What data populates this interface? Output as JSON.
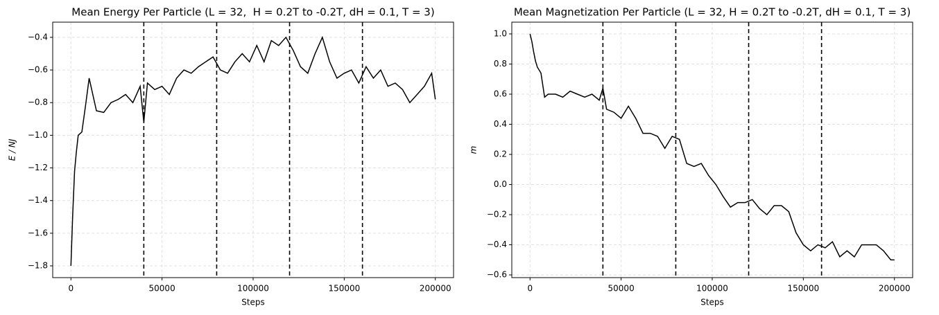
{
  "chart_data": [
    {
      "type": "line",
      "title": "Mean Energy Per Particle (L = 32,  H = 0.2T to -0.2T, dH = 0.1, T = 3)",
      "xlabel": "Steps",
      "ylabel": "E / NJ",
      "x": [
        0,
        1000,
        2000,
        3000,
        4000,
        6000,
        8000,
        10000,
        14000,
        18000,
        22000,
        26000,
        30000,
        34000,
        38000,
        40000,
        42000,
        46000,
        50000,
        54000,
        58000,
        62000,
        66000,
        70000,
        74000,
        78000,
        82000,
        86000,
        90000,
        94000,
        98000,
        102000,
        106000,
        110000,
        114000,
        118000,
        122000,
        126000,
        130000,
        134000,
        138000,
        142000,
        146000,
        150000,
        154000,
        158000,
        162000,
        166000,
        170000,
        174000,
        178000,
        182000,
        186000,
        190000,
        194000,
        198000,
        200000
      ],
      "series": [
        {
          "color": "#000000",
          "values": [
            -1.8,
            -1.48,
            -1.22,
            -1.1,
            -1.0,
            -0.98,
            -0.82,
            -0.65,
            -0.85,
            -0.86,
            -0.8,
            -0.78,
            -0.75,
            -0.8,
            -0.7,
            -0.92,
            -0.68,
            -0.72,
            -0.7,
            -0.75,
            -0.65,
            -0.6,
            -0.62,
            -0.58,
            -0.55,
            -0.52,
            -0.6,
            -0.62,
            -0.55,
            -0.5,
            -0.55,
            -0.45,
            -0.55,
            -0.42,
            -0.45,
            -0.4,
            -0.48,
            -0.58,
            -0.62,
            -0.5,
            -0.4,
            -0.55,
            -0.65,
            -0.62,
            -0.6,
            -0.68,
            -0.58,
            -0.65,
            -0.6,
            -0.7,
            -0.68,
            -0.72,
            -0.8,
            -0.75,
            -0.7,
            -0.62,
            -0.78
          ]
        }
      ],
      "vlines": [
        40000,
        80000,
        120000,
        160000
      ],
      "xlim": [
        -10000,
        210000
      ],
      "xticks": [
        0,
        50000,
        100000,
        150000,
        200000
      ],
      "ylim": [
        -1.872,
        -0.307
      ],
      "yticks": [
        {
          "value": -1.8,
          "label": "−1.8"
        },
        {
          "value": -1.6,
          "label": "−1.6"
        },
        {
          "value": -1.4,
          "label": "−1.4"
        },
        {
          "value": -1.2,
          "label": "−1.2"
        },
        {
          "value": -1.0,
          "label": "−1.0"
        },
        {
          "value": -0.8,
          "label": "−0.8"
        },
        {
          "value": -0.6,
          "label": "−0.6"
        },
        {
          "value": -0.4,
          "label": "−0.4"
        }
      ],
      "grid": true
    },
    {
      "type": "line",
      "title": "Mean Magnetization Per Particle (L = 32, H = 0.2T to -0.2T, dH = 0.1, T = 3)",
      "xlabel": "Steps",
      "ylabel": "m",
      "x": [
        0,
        1000,
        2000,
        3000,
        4000,
        6000,
        8000,
        10000,
        14000,
        18000,
        22000,
        26000,
        30000,
        34000,
        38000,
        40000,
        42000,
        46000,
        50000,
        54000,
        58000,
        62000,
        66000,
        70000,
        74000,
        78000,
        82000,
        86000,
        90000,
        94000,
        98000,
        102000,
        106000,
        110000,
        114000,
        118000,
        122000,
        126000,
        130000,
        134000,
        138000,
        142000,
        146000,
        150000,
        154000,
        158000,
        162000,
        166000,
        170000,
        174000,
        178000,
        182000,
        186000,
        190000,
        194000,
        198000,
        200000
      ],
      "series": [
        {
          "color": "#000000",
          "values": [
            1.0,
            0.95,
            0.88,
            0.82,
            0.78,
            0.74,
            0.58,
            0.6,
            0.6,
            0.58,
            0.62,
            0.6,
            0.58,
            0.6,
            0.56,
            0.64,
            0.5,
            0.48,
            0.44,
            0.52,
            0.44,
            0.34,
            0.34,
            0.32,
            0.24,
            0.32,
            0.3,
            0.14,
            0.12,
            0.14,
            0.06,
            0.0,
            -0.08,
            -0.15,
            -0.12,
            -0.12,
            -0.1,
            -0.16,
            -0.2,
            -0.14,
            -0.14,
            -0.18,
            -0.32,
            -0.4,
            -0.44,
            -0.4,
            -0.42,
            -0.38,
            -0.48,
            -0.44,
            -0.48,
            -0.4,
            -0.4,
            -0.4,
            -0.44,
            -0.5,
            -0.5
          ]
        }
      ],
      "vlines": [
        40000,
        80000,
        120000,
        160000
      ],
      "xlim": [
        -10000,
        210000
      ],
      "xticks": [
        0,
        50000,
        100000,
        150000,
        200000
      ],
      "ylim": [
        -0.618,
        1.078
      ],
      "yticks": [
        {
          "value": -0.6,
          "label": "−0.6"
        },
        {
          "value": -0.4,
          "label": "−0.4"
        },
        {
          "value": -0.2,
          "label": "−0.2"
        },
        {
          "value": 0.0,
          "label": "0.0"
        },
        {
          "value": 0.2,
          "label": "0.2"
        },
        {
          "value": 0.4,
          "label": "0.4"
        },
        {
          "value": 0.6,
          "label": "0.6"
        },
        {
          "value": 0.8,
          "label": "0.8"
        },
        {
          "value": 1.0,
          "label": "1.0"
        }
      ],
      "grid": true
    }
  ]
}
